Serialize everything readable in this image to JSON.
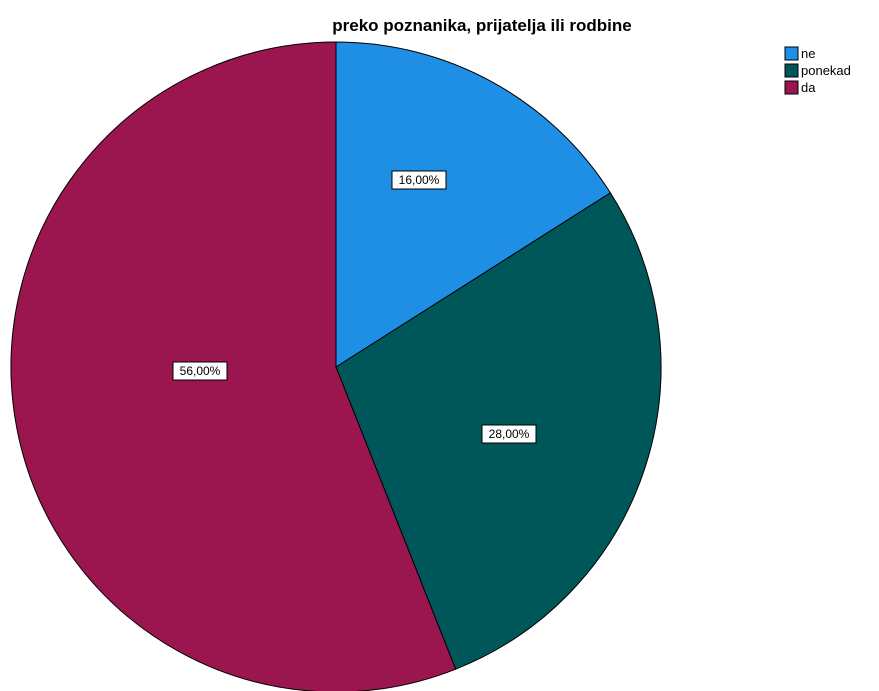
{
  "chart_data": {
    "type": "pie",
    "title": "preko poznanika, prijatelja ili rodbine",
    "categories": [
      "ne",
      "ponekad",
      "da"
    ],
    "values": [
      16.0,
      28.0,
      56.0
    ],
    "value_labels": [
      "16,00%",
      "28,00%",
      "56,00%"
    ],
    "colors": [
      "#1f8fe6",
      "#00575a",
      "#9b164e"
    ],
    "start_angle": "12 o'clock",
    "direction": "clockwise",
    "legend_position": "top-right"
  }
}
